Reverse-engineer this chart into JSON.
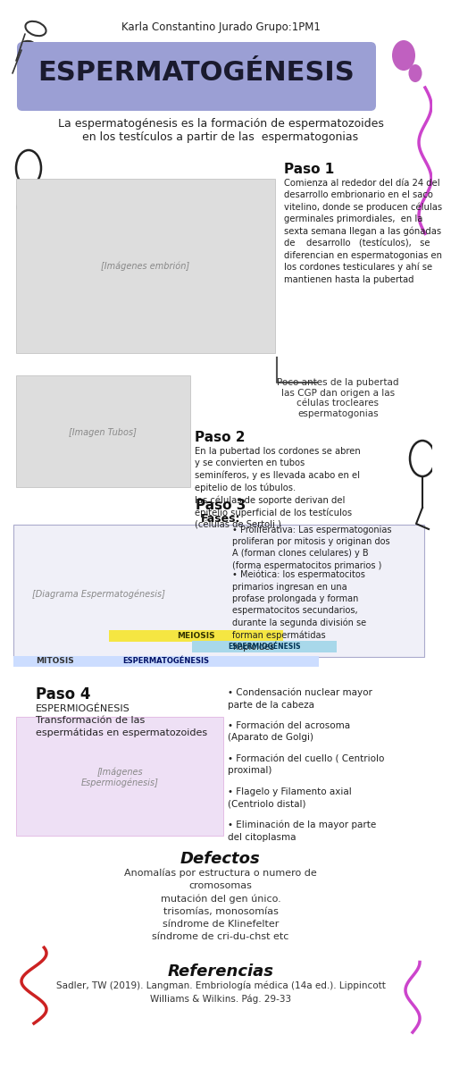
{
  "title_header": "Karla Constantino Jurado Grupo:1PM1",
  "main_title": "ESPERMATOGÉNESIS",
  "main_title_bg": "#9B9FD4",
  "subtitle": "La espermatogénesis es la formación de espermatozoides\nen los testículos a partir de las  espermatogonias",
  "bg_color": "#FFFFFF",
  "paso1_title": "Paso 1",
  "paso1_text": "Comienza al rededor del día 24 del\ndesarrollo embrionario en el saco\nvitelino, donde se producen células\ngerminales primordiales,  en la\nsexta semana llegan a las gónadas\nde    desarrollo   (testículos),   se\ndiferencian en espermatogonias en\nlos cordones testiculares y ahí se\nmantienen hasta la pubertad",
  "paso2_title": "Paso 2",
  "paso2_note": "Poco antes de la pubertad\nlas CGP dan origen a las\ncélulas trocleares\nespermatogonias",
  "paso2_text": "En la pubertad los cordones se abren\ny se convierten en tubos\nseminíferos, y es llevada acabo en el\nepitelio de los túbulos.\nlas células de soporte derivan del\nepitelio superficial de los testículos\n(células de Sertoli )",
  "paso3_title": "Paso 3",
  "paso3_subtitle": "Fases:",
  "paso3_bullet1": "Proliferativa: Las espermatogonias\nproliferan por mitosis y originan dos\nA (forman clones celulares) y B\n(forma espermatocitos primarios )",
  "paso3_bullet2": "Meiótica: los espermatocitos\nprimarios ingresan en una\nprofase prolongada y forman\nespermatocitos secundarios,\ndurante la segunda división se\nforman espermátidas\nhaploides",
  "paso4_title": "Paso 4",
  "paso4_subtitle": "ESPERMIOGÉNESIS\nTransformación de las\nespermátidas en espermatozoides",
  "paso4_bullets": [
    "Condensación nuclear mayor\nparte de la cabeza",
    "Formación del acrosoma\n(Aparato de Golgi)",
    "Formación del cuello ( Centriolo\nproximal)",
    "Flagelo y Filamento axial\n(Centriolo distal)",
    "Eliminación de la mayor parte\ndel citoplasma"
  ],
  "defectos_title": "Defectos",
  "defectos_text": "Anomalías por estructura o numero de\ncromosomas\nmutación del gen único.\ntrisomías, monosomías\nsíndrome de Klinefelter\nsíndrome de cri-du-chst etc",
  "referencias_title": "Referencias",
  "referencias_text": "Sadler, TW (2019). Langman. Embriología médica (14a ed.). Lippincott\nWilliams & Wilkins. Pág. 29-33",
  "label_mitosis": "MITOSIS",
  "label_meiosis": "MEIOSIS",
  "label_espermiogenesis": "ESPERMIOGÉNESIS",
  "label_espermatogenesis": "ESPERMATOGÉNESIS",
  "yellow_bar_color": "#F5E642",
  "blue_bar_color": "#A8D8EA",
  "paso_title_color": "#000000",
  "accent_purple": "#8B5CF6",
  "accent_pink": "#D946EF"
}
